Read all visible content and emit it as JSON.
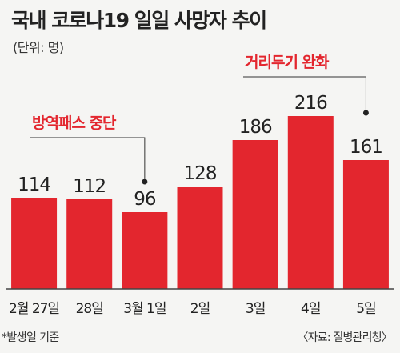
{
  "title": "국내 코로나19 일일 사망자 추이",
  "unit": "(단위: 명)",
  "footnote": "*발생일 기준",
  "source": "〈자료: 질병관리청〉",
  "colors": {
    "bar": "#e3262e",
    "annotation": "#e3262e",
    "axis": "#444444",
    "text": "#222222"
  },
  "chart_data": {
    "type": "bar",
    "categories": [
      "2월 27일",
      "28일",
      "3월 1일",
      "2일",
      "3일",
      "4일",
      "5일"
    ],
    "values": [
      114,
      112,
      96,
      128,
      186,
      216,
      161
    ],
    "title": "국내 코로나19 일일 사망자 추이",
    "ylabel": "",
    "xlabel": "",
    "ylim": [
      0,
      230
    ],
    "grid": false,
    "annotations": [
      {
        "text": "방역패스 중단",
        "category": "3월 1일"
      },
      {
        "text": "거리두기 완화",
        "category": "5일"
      }
    ]
  }
}
